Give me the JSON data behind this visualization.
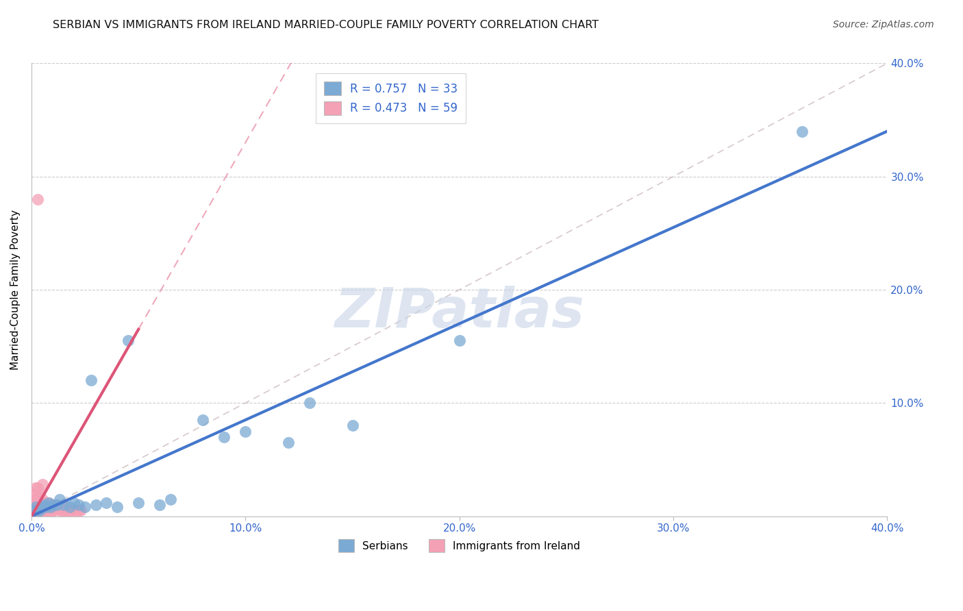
{
  "title": "SERBIAN VS IMMIGRANTS FROM IRELAND MARRIED-COUPLE FAMILY POVERTY CORRELATION CHART",
  "source": "Source: ZipAtlas.com",
  "ylabel": "Married-Couple Family Poverty",
  "xlim": [
    0.0,
    0.4
  ],
  "ylim": [
    0.0,
    0.4
  ],
  "xticks": [
    0.0,
    0.1,
    0.2,
    0.3,
    0.4
  ],
  "yticks": [
    0.1,
    0.2,
    0.3,
    0.4
  ],
  "xtick_labels": [
    "0.0%",
    "10.0%",
    "20.0%",
    "30.0%",
    "40.0%"
  ],
  "ytick_right_labels": [
    "10.0%",
    "20.0%",
    "30.0%",
    "40.0%"
  ],
  "blue_color": "#7BAAD4",
  "pink_color": "#F4A0B5",
  "blue_line_color": "#4477CC",
  "pink_line_color": "#DD5577",
  "diag_color": "#CCBBBB",
  "R_serbian": 0.757,
  "N_serbian": 33,
  "R_ireland": 0.473,
  "N_ireland": 59,
  "watermark_color": "#C8D5E8",
  "serbian_points": [
    [
      0.001,
      0.005
    ],
    [
      0.002,
      0.008
    ],
    [
      0.003,
      0.005
    ],
    [
      0.004,
      0.005
    ],
    [
      0.005,
      0.008
    ],
    [
      0.006,
      0.01
    ],
    [
      0.007,
      0.008
    ],
    [
      0.008,
      0.012
    ],
    [
      0.009,
      0.008
    ],
    [
      0.01,
      0.01
    ],
    [
      0.012,
      0.01
    ],
    [
      0.013,
      0.015
    ],
    [
      0.015,
      0.01
    ],
    [
      0.018,
      0.008
    ],
    [
      0.02,
      0.012
    ],
    [
      0.022,
      0.01
    ],
    [
      0.025,
      0.008
    ],
    [
      0.028,
      0.12
    ],
    [
      0.03,
      0.01
    ],
    [
      0.035,
      0.012
    ],
    [
      0.04,
      0.008
    ],
    [
      0.045,
      0.155
    ],
    [
      0.05,
      0.012
    ],
    [
      0.06,
      0.01
    ],
    [
      0.065,
      0.015
    ],
    [
      0.08,
      0.085
    ],
    [
      0.09,
      0.07
    ],
    [
      0.1,
      0.075
    ],
    [
      0.12,
      0.065
    ],
    [
      0.13,
      0.1
    ],
    [
      0.15,
      0.08
    ],
    [
      0.2,
      0.155
    ],
    [
      0.36,
      0.34
    ]
  ],
  "ireland_points": [
    [
      0.001,
      0.005
    ],
    [
      0.001,
      0.008
    ],
    [
      0.001,
      0.012
    ],
    [
      0.001,
      0.02
    ],
    [
      0.002,
      0.005
    ],
    [
      0.002,
      0.008
    ],
    [
      0.002,
      0.01
    ],
    [
      0.002,
      0.015
    ],
    [
      0.002,
      0.025
    ],
    [
      0.003,
      0.005
    ],
    [
      0.003,
      0.008
    ],
    [
      0.003,
      0.01
    ],
    [
      0.003,
      0.015
    ],
    [
      0.003,
      0.018
    ],
    [
      0.003,
      0.025
    ],
    [
      0.004,
      0.005
    ],
    [
      0.004,
      0.008
    ],
    [
      0.004,
      0.01
    ],
    [
      0.004,
      0.012
    ],
    [
      0.004,
      0.02
    ],
    [
      0.005,
      0.005
    ],
    [
      0.005,
      0.008
    ],
    [
      0.005,
      0.01
    ],
    [
      0.005,
      0.015
    ],
    [
      0.005,
      0.028
    ],
    [
      0.006,
      0.005
    ],
    [
      0.006,
      0.008
    ],
    [
      0.006,
      0.01
    ],
    [
      0.006,
      0.012
    ],
    [
      0.007,
      0.005
    ],
    [
      0.007,
      0.008
    ],
    [
      0.007,
      0.01
    ],
    [
      0.008,
      0.005
    ],
    [
      0.008,
      0.008
    ],
    [
      0.008,
      0.012
    ],
    [
      0.009,
      0.005
    ],
    [
      0.009,
      0.008
    ],
    [
      0.01,
      0.005
    ],
    [
      0.01,
      0.008
    ],
    [
      0.01,
      0.01
    ],
    [
      0.011,
      0.005
    ],
    [
      0.011,
      0.008
    ],
    [
      0.012,
      0.008
    ],
    [
      0.012,
      0.01
    ],
    [
      0.013,
      0.005
    ],
    [
      0.013,
      0.008
    ],
    [
      0.014,
      0.005
    ],
    [
      0.014,
      0.008
    ],
    [
      0.015,
      0.005
    ],
    [
      0.016,
      0.005
    ],
    [
      0.016,
      0.008
    ],
    [
      0.017,
      0.005
    ],
    [
      0.018,
      0.005
    ],
    [
      0.019,
      0.005
    ],
    [
      0.02,
      0.005
    ],
    [
      0.021,
      0.005
    ],
    [
      0.022,
      0.005
    ],
    [
      0.023,
      0.005
    ],
    [
      0.003,
      0.28
    ]
  ]
}
